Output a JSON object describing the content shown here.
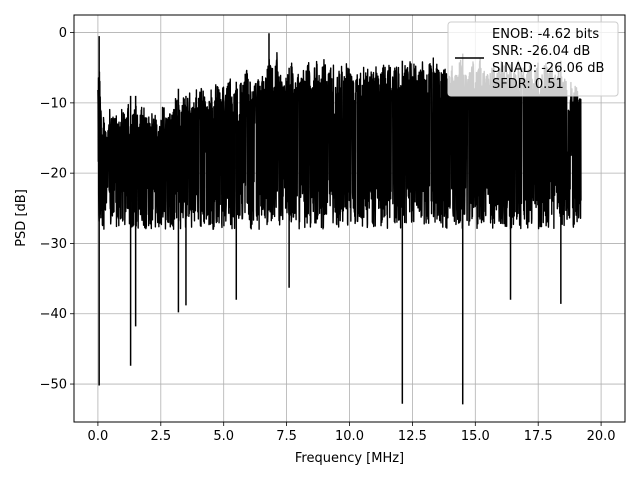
{
  "chart_data": {
    "type": "line",
    "xlabel": "Frequency [MHz]",
    "ylabel": "PSD [dB]",
    "xlim": [
      -0.95,
      20.95
    ],
    "ylim": [
      -55.4,
      2.5
    ],
    "xticks": [
      0.0,
      2.5,
      5.0,
      7.5,
      10.0,
      12.5,
      15.0,
      17.5,
      20.0
    ],
    "xtick_labels": [
      "0.0",
      "2.5",
      "5.0",
      "7.5",
      "10.0",
      "12.5",
      "15.0",
      "17.5",
      "20.0"
    ],
    "yticks": [
      0,
      -10,
      -20,
      -30,
      -40,
      -50
    ],
    "ytick_labels": [
      "0",
      "−10",
      "−20",
      "−30",
      "−40",
      "−50"
    ],
    "grid": true,
    "legend": {
      "location": "upper right",
      "entries": [
        "ENOB: -4.62 bits",
        "SNR: -26.04 dB",
        "SINAD: -26.06 dB",
        "SFDR: 0.51"
      ]
    },
    "series": [
      {
        "color": "#000000",
        "x": [
          0.0,
          0.05,
          0.1,
          0.15,
          0.2,
          0.3,
          0.4,
          0.5,
          0.6,
          0.7,
          0.8,
          0.9,
          1.0,
          1.1,
          1.2,
          1.3,
          1.4,
          1.5,
          1.6,
          1.7,
          1.8,
          1.9,
          2.0,
          2.1,
          2.2,
          2.3,
          2.4,
          2.5,
          2.6,
          2.7,
          2.8,
          2.9,
          3.0,
          3.1,
          3.2,
          3.3,
          3.4,
          3.5,
          3.6,
          3.7,
          3.8,
          3.9,
          4.0,
          4.1,
          4.2,
          4.3,
          4.4,
          4.5,
          4.6,
          4.7,
          4.8,
          4.9,
          5.0,
          5.1,
          5.2,
          5.3,
          5.4,
          5.5,
          5.6,
          5.7,
          5.8,
          5.9,
          6.0,
          6.1,
          6.2,
          6.3,
          6.4,
          6.5,
          6.6,
          6.7,
          6.8,
          6.9,
          7.0,
          7.1,
          7.2,
          7.3,
          7.4,
          7.5,
          7.6,
          7.7,
          7.8,
          7.9,
          8.0,
          8.1,
          8.2,
          8.3,
          8.4,
          8.5,
          8.6,
          8.7,
          8.8,
          8.9,
          9.0,
          9.1,
          9.2,
          9.3,
          9.4,
          9.5,
          9.6,
          9.7,
          9.8,
          9.9,
          10.0,
          10.1,
          10.2,
          10.3,
          10.4,
          10.5,
          10.6,
          10.7,
          10.8,
          10.9,
          11.0,
          11.1,
          11.2,
          11.3,
          11.4,
          11.5,
          11.6,
          11.7,
          11.8,
          11.9,
          12.0,
          12.1,
          12.2,
          12.3,
          12.4,
          12.5,
          12.6,
          12.7,
          12.8,
          12.9,
          13.0,
          13.1,
          13.2,
          13.3,
          13.4,
          13.5,
          13.6,
          13.7,
          13.8,
          13.9,
          14.0,
          14.1,
          14.2,
          14.3,
          14.4,
          14.5,
          14.6,
          14.7,
          14.8,
          14.9,
          15.0,
          15.1,
          15.2,
          15.3,
          15.4,
          15.5,
          15.6,
          15.7,
          15.8,
          15.9,
          16.0,
          16.1,
          16.2,
          16.3,
          16.4,
          16.5,
          16.6,
          16.7,
          16.8,
          16.9,
          17.0,
          17.1,
          17.2,
          17.3,
          17.4,
          17.5,
          17.6,
          17.7,
          17.8,
          17.9,
          18.0,
          18.1,
          18.2,
          18.3,
          18.4,
          18.5,
          18.6,
          18.7,
          18.8,
          18.9,
          19.0,
          19.1,
          19.2,
          19.3,
          19.4,
          19.5,
          19.6,
          19.7,
          19.8,
          19.9,
          20.0
        ],
        "max": [
          -5,
          -0.5,
          -9,
          -11,
          -12,
          -12,
          -13,
          -10,
          -12,
          -11,
          -12,
          -10,
          -11,
          -12,
          -10,
          -13,
          -11,
          -10,
          -12,
          -11,
          -10,
          -12,
          -11,
          -10,
          -12,
          -11,
          -13,
          -11,
          -10,
          -12,
          -11,
          -10,
          -11,
          -9,
          -10,
          -11,
          -9,
          -10,
          -8,
          -9,
          -10,
          -8,
          -9,
          -7,
          -8,
          -9,
          -10,
          -8,
          -9,
          -7,
          -8,
          -9,
          -7,
          -8,
          -6,
          -7,
          -8,
          -7,
          -9,
          -6,
          -7,
          -5,
          -6,
          -7,
          -8,
          -6,
          -7,
          -5,
          -7,
          -6,
          -3,
          -4,
          -6,
          -2,
          -5,
          -6,
          -7,
          -5,
          -6,
          -4,
          -7,
          -5,
          -6,
          -4,
          -6,
          -5,
          -3,
          -6,
          -5,
          -4,
          -6,
          -5,
          -3,
          -6,
          -4,
          -5,
          -3,
          -6,
          -5,
          -4,
          -6,
          -3,
          -5,
          -4,
          -6,
          -5,
          -4,
          -6,
          -3,
          -5,
          -4,
          -6,
          -5,
          -4,
          -6,
          -5,
          -3,
          -5,
          -4,
          -6,
          -5,
          -4,
          -5,
          -6,
          -4,
          -5,
          -3,
          -5,
          -4,
          -6,
          -5,
          -4,
          -6,
          -5,
          -4,
          -3,
          -5,
          -4,
          -6,
          -5,
          -4,
          -6,
          -5,
          -4,
          -6,
          -5,
          -3,
          -5,
          -4,
          -6,
          -5,
          -4,
          -6,
          -5,
          -3,
          -5,
          -4,
          -6,
          -5,
          -4,
          -6,
          -5,
          -4,
          -3,
          -5,
          -6,
          -4,
          -5,
          -6,
          -4,
          -5,
          -4,
          -6,
          -5,
          -4,
          -6,
          -5,
          -4,
          -6,
          -5,
          -4,
          -6,
          -5,
          -4,
          -6,
          -5,
          -6,
          -7,
          -6,
          -8,
          -7,
          -8,
          -7,
          -9,
          -8
        ],
        "min": [
          -10,
          -50.2,
          -28,
          -26,
          -31,
          -27,
          -26,
          -29,
          -28,
          -27,
          -29,
          -27,
          -32,
          -27,
          -47.4,
          -28,
          -29,
          -27,
          -33,
          -30,
          -41.8,
          -28,
          -27,
          -31,
          -27,
          -28,
          -32,
          -36,
          -27,
          -29,
          -28,
          -30,
          -27,
          -39.8,
          -30,
          -28,
          -38.8,
          -27,
          -30,
          -28,
          -28,
          -30,
          -28,
          -33,
          -27,
          -29,
          -28,
          -27,
          -29,
          -30,
          -27,
          -28,
          -30,
          -27,
          -26,
          -28,
          -38,
          -27,
          -30,
          -26,
          -28,
          -27,
          -26,
          -29,
          -27,
          -26,
          -31,
          -28,
          -26,
          -27,
          -29,
          -30,
          -26,
          -28,
          -27,
          -29,
          -26,
          -27,
          -36.3,
          -28,
          -26,
          -27,
          -29,
          -26,
          -28,
          -27,
          -35,
          -26,
          -28,
          -27,
          -26,
          -29,
          -28,
          -26,
          -27,
          -28,
          -26,
          -31,
          -27,
          -28,
          -26,
          -29,
          -28,
          -26,
          -27,
          -29,
          -26,
          -28,
          -27,
          -29,
          -26,
          -27,
          -28,
          -26,
          -29,
          -27,
          -26,
          -28,
          -27,
          -26,
          -29,
          -28,
          -27,
          -52.8,
          -26,
          -28,
          -27,
          -29,
          -26,
          -28,
          -27,
          -26,
          -29,
          -27,
          -28,
          -26,
          -29,
          -30,
          -27,
          -28,
          -26,
          -34,
          -27,
          -29,
          -33,
          -52.9,
          -27,
          -28,
          -26,
          -29,
          -27,
          -28,
          -26,
          -30,
          -27,
          -28,
          -31,
          -32,
          -27,
          -29,
          -28,
          -26,
          -33,
          -35,
          -38,
          -27,
          -28,
          -33,
          -30,
          -27,
          -28,
          -31,
          -27,
          -29,
          -28,
          -27,
          -26,
          -29,
          -30,
          -28,
          -27,
          -38.6,
          -28,
          -29,
          -26,
          -28,
          -27,
          -29,
          -26,
          -28,
          -27,
          -29,
          -26,
          -28,
          -27,
          -29,
          -28,
          -26,
          -27,
          -28,
          -29,
          -27
        ],
        "spikes": [
          [
            0.05,
            -0.5,
            -50.2
          ],
          [
            1.3,
            -9,
            -47.4
          ],
          [
            1.5,
            -9,
            -41.8
          ],
          [
            3.2,
            -8,
            -39.8
          ],
          [
            3.5,
            -9,
            -38.8
          ],
          [
            5.5,
            -7,
            -38
          ],
          [
            7.6,
            -5,
            -36.3
          ],
          [
            6.8,
            -0.1,
            -20
          ],
          [
            12.1,
            -4,
            -52.8
          ],
          [
            14.5,
            -3,
            -52.9
          ],
          [
            16.4,
            -5,
            -38
          ],
          [
            18.4,
            -4,
            -38.6
          ]
        ]
      }
    ]
  }
}
